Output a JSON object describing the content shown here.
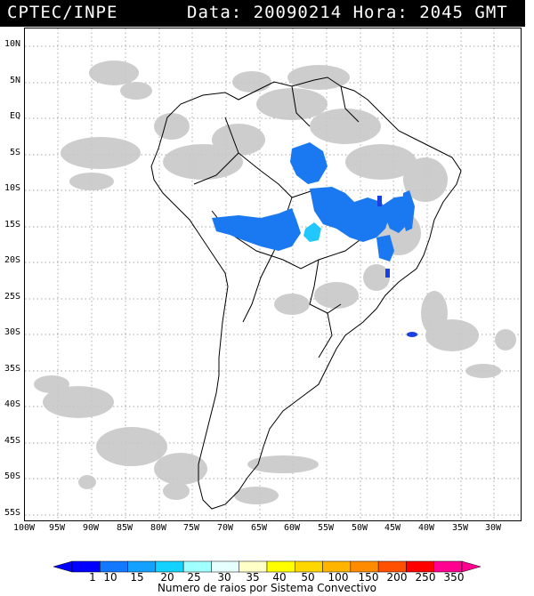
{
  "header": {
    "org": "CPTEC/INPE",
    "stamp": "Data: 20090214 Hora: 2045 GMT"
  },
  "map": {
    "lat_labels": [
      "10N",
      "5N",
      "EQ",
      "5S",
      "10S",
      "15S",
      "20S",
      "25S",
      "30S",
      "35S",
      "40S",
      "45S",
      "50S",
      "55S"
    ],
    "lon_labels": [
      "100W",
      "95W",
      "90W",
      "85W",
      "80W",
      "75W",
      "70W",
      "65W",
      "60W",
      "55W",
      "50W",
      "45W",
      "40W",
      "35W",
      "30W"
    ],
    "colors": {
      "cloud": "#c8c8c8",
      "coast": "#000000",
      "grid": "#888888",
      "lightning_dark": "#1a40e0",
      "lightning_mid": "#1a78f0",
      "lightning_cyan": "#20c8ff"
    }
  },
  "legend": {
    "labels": [
      "1",
      "10",
      "15",
      "20",
      "25",
      "30",
      "35",
      "40",
      "50",
      "100",
      "150",
      "200",
      "250",
      "350"
    ],
    "colors": [
      "#0000ff",
      "#1478ff",
      "#14a0ff",
      "#14d2ff",
      "#a0ffff",
      "#e6ffff",
      "#ffffc8",
      "#ffff00",
      "#ffd700",
      "#ffb400",
      "#ff8c00",
      "#ff5000",
      "#ff0000",
      "#ff0090"
    ],
    "title": "Numero de raios por Sistema Convectivo"
  }
}
